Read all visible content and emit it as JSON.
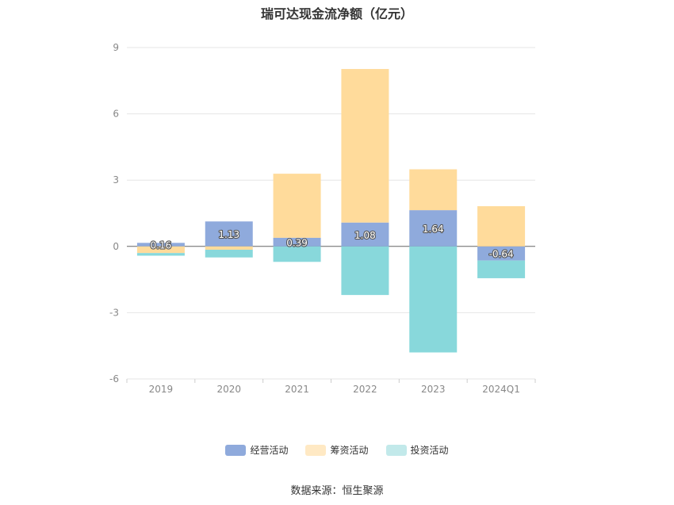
{
  "chart_data": {
    "type": "bar",
    "stacked": true,
    "title": "瑞可达现金流净额（亿元）",
    "categories": [
      "2019",
      "2020",
      "2021",
      "2022",
      "2023",
      "2024Q1"
    ],
    "series": [
      {
        "name": "经营活动",
        "color": "#8faadc",
        "values": [
          0.16,
          1.13,
          0.39,
          1.08,
          1.64,
          -0.64
        ]
      },
      {
        "name": "筹资活动",
        "color": "#ffdb9b",
        "values": [
          -0.3,
          -0.15,
          2.9,
          6.95,
          1.85,
          1.82
        ]
      },
      {
        "name": "投资活动",
        "color": "#88d8db",
        "values": [
          -0.12,
          -0.35,
          -0.7,
          -2.2,
          -4.8,
          -0.8
        ]
      }
    ],
    "data_labels_series": "经营活动",
    "data_labels": [
      "0.16",
      "1.13",
      "0.39",
      "1.08",
      "1.64",
      "-0.64"
    ],
    "ylim": [
      -6,
      9
    ],
    "yticks": [
      "9",
      "6",
      "3",
      "0",
      "-3",
      "-6"
    ],
    "grid": true,
    "legend_position": "bottom"
  },
  "legend": [
    {
      "label": "经营活动",
      "color": "#8faadc"
    },
    {
      "label": "筹资活动",
      "color": "#ffdb9b"
    },
    {
      "label": "投资活动",
      "color": "#c2e9ea"
    }
  ],
  "source": "数据来源：恒生聚源"
}
